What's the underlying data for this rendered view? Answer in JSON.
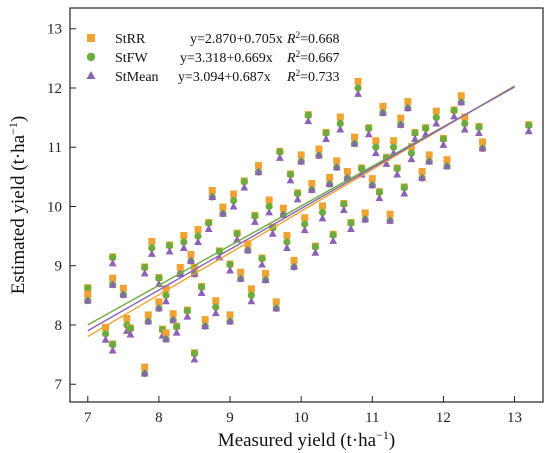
{
  "chart_data": {
    "type": "scatter",
    "xlabel_main": "Measured yield (t·ha",
    "xlabel_sup": "−1",
    "xlabel_end": ")",
    "ylabel_main": "Estimated yield (t·ha",
    "ylabel_sup": "−1",
    "ylabel_end": ")",
    "xlim": [
      6.75,
      13.4
    ],
    "ylim": [
      6.7,
      13.35
    ],
    "xticks": [
      "7",
      "8",
      "9",
      "10",
      "11",
      "12",
      "13"
    ],
    "yticks": [
      "7",
      "8",
      "9",
      "10",
      "11",
      "12",
      "13"
    ],
    "legend_position": "top-left",
    "series": [
      {
        "name": "StRR",
        "color": "#f0a330",
        "marker": "square",
        "equation": "y=2.870+0.705x",
        "r2_label": "R",
        "r2_sup": "2",
        "r2_value": "=0.668",
        "fit": {
          "intercept": 2.87,
          "slope": 0.705
        }
      },
      {
        "name": "StFW",
        "color": "#6aad3d",
        "marker": "circle",
        "equation": "y=3.318+0.669x",
        "r2_label": "R",
        "r2_sup": "2",
        "r2_value": "=0.667",
        "fit": {
          "intercept": 3.318,
          "slope": 0.669
        }
      },
      {
        "name": "StMean",
        "color": "#8c62b7",
        "marker": "triangle",
        "equation": "y=3.094+0.687x",
        "r2_label": "R",
        "r2_sup": "2",
        "r2_value": "=0.733",
        "fit": {
          "intercept": 3.094,
          "slope": 0.687
        }
      }
    ],
    "points": [
      [
        7.0,
        8.6
      ],
      [
        7.0,
        8.45
      ],
      [
        7.25,
        7.85
      ],
      [
        7.35,
        9.1
      ],
      [
        7.35,
        8.7
      ],
      [
        7.35,
        7.65
      ],
      [
        7.5,
        8.55
      ],
      [
        7.55,
        8.0
      ],
      [
        7.6,
        7.9
      ],
      [
        7.8,
        7.2
      ],
      [
        7.8,
        8.95
      ],
      [
        7.85,
        8.1
      ],
      [
        7.9,
        9.3
      ],
      [
        8.0,
        8.75
      ],
      [
        8.0,
        8.3
      ],
      [
        8.05,
        7.9
      ],
      [
        8.1,
        7.8
      ],
      [
        8.1,
        8.5
      ],
      [
        8.15,
        9.3
      ],
      [
        8.2,
        8.1
      ],
      [
        8.25,
        7.95
      ],
      [
        8.3,
        8.9
      ],
      [
        8.35,
        9.4
      ],
      [
        8.4,
        8.2
      ],
      [
        8.45,
        9.1
      ],
      [
        8.5,
        7.5
      ],
      [
        8.5,
        8.9
      ],
      [
        8.55,
        9.5
      ],
      [
        8.6,
        8.6
      ],
      [
        8.65,
        8.0
      ],
      [
        8.7,
        9.7
      ],
      [
        8.75,
        10.2
      ],
      [
        8.8,
        8.3
      ],
      [
        8.85,
        9.2
      ],
      [
        8.9,
        9.9
      ],
      [
        9.0,
        9.0
      ],
      [
        9.0,
        8.1
      ],
      [
        9.05,
        10.1
      ],
      [
        9.1,
        9.5
      ],
      [
        9.15,
        8.8
      ],
      [
        9.2,
        10.4
      ],
      [
        9.25,
        9.3
      ],
      [
        9.3,
        8.5
      ],
      [
        9.35,
        9.8
      ],
      [
        9.4,
        10.6
      ],
      [
        9.45,
        9.1
      ],
      [
        9.5,
        8.8
      ],
      [
        9.55,
        10.0
      ],
      [
        9.6,
        9.6
      ],
      [
        9.65,
        8.3
      ],
      [
        9.7,
        10.9
      ],
      [
        9.75,
        9.9
      ],
      [
        9.8,
        9.4
      ],
      [
        9.85,
        10.5
      ],
      [
        9.9,
        9.0
      ],
      [
        9.95,
        10.2
      ],
      [
        10.0,
        10.8
      ],
      [
        10.05,
        9.7
      ],
      [
        10.1,
        11.5
      ],
      [
        10.15,
        10.3
      ],
      [
        10.2,
        9.3
      ],
      [
        10.25,
        10.9
      ],
      [
        10.3,
        9.9
      ],
      [
        10.35,
        11.2
      ],
      [
        10.4,
        10.4
      ],
      [
        10.45,
        9.5
      ],
      [
        10.5,
        10.7
      ],
      [
        10.55,
        11.4
      ],
      [
        10.6,
        10.0
      ],
      [
        10.65,
        10.5
      ],
      [
        10.7,
        9.7
      ],
      [
        10.75,
        11.1
      ],
      [
        10.8,
        12.0
      ],
      [
        10.85,
        10.6
      ],
      [
        10.9,
        9.8
      ],
      [
        10.95,
        11.3
      ],
      [
        11.0,
        10.4
      ],
      [
        11.05,
        11.0
      ],
      [
        11.1,
        10.2
      ],
      [
        11.15,
        11.6
      ],
      [
        11.2,
        10.8
      ],
      [
        11.25,
        9.8
      ],
      [
        11.3,
        11.0
      ],
      [
        11.35,
        10.6
      ],
      [
        11.4,
        11.4
      ],
      [
        11.45,
        10.3
      ],
      [
        11.5,
        11.7
      ],
      [
        11.55,
        10.9
      ],
      [
        11.6,
        11.2
      ],
      [
        11.7,
        10.5
      ],
      [
        11.75,
        11.3
      ],
      [
        11.8,
        10.8
      ],
      [
        11.9,
        11.5
      ],
      [
        12.0,
        11.1
      ],
      [
        12.05,
        10.7
      ],
      [
        12.15,
        11.6
      ],
      [
        12.25,
        11.8
      ],
      [
        12.3,
        11.4
      ],
      [
        12.5,
        11.3
      ],
      [
        12.55,
        11.0
      ],
      [
        13.2,
        11.35
      ]
    ]
  }
}
